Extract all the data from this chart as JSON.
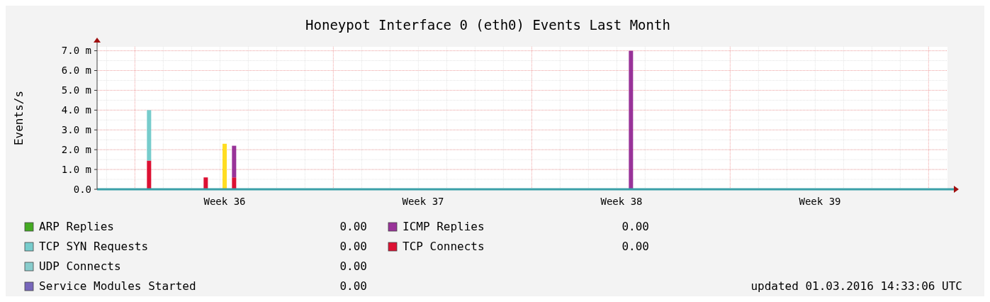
{
  "chart_data": {
    "type": "bar",
    "title": "Honeypot Interface 0 (eth0) Events Last Month",
    "ylabel": "Events/s",
    "stacked": true,
    "categories": [
      null,
      null,
      null,
      null,
      null,
      null,
      null,
      null,
      null,
      null,
      null,
      null,
      null,
      "Week 36",
      null,
      null,
      null,
      null,
      null,
      null,
      null,
      null,
      null,
      null,
      null,
      null,
      null,
      null,
      null,
      null,
      null,
      null,
      null,
      null,
      "Week 37",
      null,
      null,
      null,
      null,
      null,
      null,
      null,
      null,
      null,
      null,
      null,
      null,
      null,
      null,
      null,
      null,
      null,
      null,
      null,
      null,
      "Week 38",
      null,
      null,
      null,
      null,
      null,
      null,
      null,
      null,
      null,
      null,
      null,
      null,
      null,
      null,
      null,
      null,
      null,
      null,
      null,
      null,
      "Week 39",
      null,
      null,
      null,
      null,
      null,
      null,
      null,
      null,
      null,
      null,
      null,
      null,
      null
    ],
    "ylim": [
      0,
      7.2
    ],
    "yticks": [
      {
        "value": 0,
        "label": "0.0"
      },
      {
        "value": 1,
        "label": "1.0 m"
      },
      {
        "value": 2,
        "label": "2.0 m"
      },
      {
        "value": 3,
        "label": "3.0 m"
      },
      {
        "value": 4,
        "label": "4.0 m"
      },
      {
        "value": 5,
        "label": "5.0 m"
      },
      {
        "value": 6,
        "label": "6.0 m"
      },
      {
        "value": 7,
        "label": "7.0 m"
      }
    ],
    "grid": true,
    "legend": "bottom",
    "series": [
      {
        "name": "ARP Replies",
        "color": "#44aa22",
        "values": [
          0,
          0,
          0,
          0,
          0,
          0,
          0,
          0,
          0,
          0,
          0,
          0,
          0,
          0,
          0,
          0,
          0,
          0,
          0,
          0,
          0,
          0,
          0,
          0,
          0,
          0,
          0,
          0,
          0,
          0,
          0,
          0,
          0,
          0,
          0,
          0,
          0,
          0,
          0,
          0,
          0,
          0,
          0,
          0,
          0,
          0,
          0,
          0,
          0,
          0,
          0,
          0,
          0,
          0,
          0,
          0,
          0,
          0,
          0,
          0,
          0,
          0,
          0,
          0,
          0,
          0,
          0,
          0,
          0,
          0,
          0,
          0,
          0,
          0,
          0,
          0,
          0,
          0,
          0,
          0,
          0,
          0,
          0,
          0,
          0,
          0,
          0,
          0,
          0,
          0
        ]
      },
      {
        "name": "TCP Connects",
        "color": "#dd1133",
        "values": [
          null,
          null,
          null,
          null,
          null,
          1.45,
          null,
          null,
          null,
          null,
          null,
          0.6,
          null,
          null,
          0.6,
          null,
          null,
          null,
          null,
          null,
          null,
          null,
          null,
          null,
          null,
          null,
          null,
          null,
          null,
          null,
          null,
          null,
          null,
          null,
          null,
          null,
          null,
          null,
          null,
          null,
          null,
          null,
          null,
          null,
          null,
          null,
          null,
          null,
          null,
          null,
          null,
          null,
          null,
          null,
          null,
          null,
          null,
          null,
          null,
          null,
          null,
          null,
          null,
          null,
          null,
          null,
          null,
          null,
          null,
          null,
          null,
          null,
          null,
          null,
          null,
          null,
          null,
          null,
          null,
          null,
          null,
          null,
          null,
          null,
          null,
          null,
          null,
          null,
          null,
          null
        ]
      },
      {
        "name": "TCP SYN Requests",
        "color": "#77cccc",
        "values": [
          null,
          null,
          null,
          null,
          null,
          2.55,
          null,
          null,
          null,
          null,
          null,
          null,
          null,
          null,
          null,
          null,
          null,
          null,
          null,
          null,
          null,
          null,
          null,
          null,
          null,
          null,
          null,
          null,
          null,
          null,
          null,
          null,
          null,
          null,
          null,
          null,
          null,
          null,
          null,
          null,
          null,
          null,
          null,
          null,
          null,
          null,
          null,
          null,
          null,
          null,
          null,
          null,
          null,
          null,
          null,
          null,
          null,
          null,
          null,
          null,
          null,
          null,
          null,
          null,
          null,
          null,
          null,
          null,
          null,
          null,
          null,
          null,
          null,
          null,
          null,
          null,
          null,
          null,
          null,
          null,
          null,
          null,
          null,
          null,
          null,
          null,
          null,
          null,
          null,
          null
        ]
      },
      {
        "name": "UDP Connects",
        "color": "#88cccc",
        "values": [
          0,
          0,
          0,
          0,
          0,
          0,
          0,
          0,
          0,
          0,
          0,
          0,
          0,
          0,
          0,
          0,
          0,
          0,
          0,
          0,
          0,
          0,
          0,
          0,
          0,
          0,
          0,
          0,
          0,
          0,
          0,
          0,
          0,
          0,
          0,
          0,
          0,
          0,
          0,
          0,
          0,
          0,
          0,
          0,
          0,
          0,
          0,
          0,
          0,
          0,
          0,
          0,
          0,
          0,
          0,
          0,
          0,
          0,
          0,
          0,
          0,
          0,
          0,
          0,
          0,
          0,
          0,
          0,
          0,
          0,
          0,
          0,
          0,
          0,
          0,
          0,
          0,
          0,
          0,
          0,
          0,
          0,
          0,
          0,
          0,
          0,
          0,
          0,
          0,
          0
        ]
      },
      {
        "name": "Service Modules Started",
        "color": "#7766bb",
        "values": [
          0,
          0,
          0,
          0,
          0,
          0,
          0,
          0,
          0,
          0,
          0,
          0,
          0,
          0,
          0,
          0,
          0,
          0,
          0,
          0,
          0,
          0,
          0,
          0,
          0,
          0,
          0,
          0,
          0,
          0,
          0,
          0,
          0,
          0,
          0,
          0,
          0,
          0,
          0,
          0,
          0,
          0,
          0,
          0,
          0,
          0,
          0,
          0,
          0,
          0,
          0,
          0,
          0,
          0,
          0,
          0,
          0,
          0,
          0,
          0,
          0,
          0,
          0,
          0,
          0,
          0,
          0,
          0,
          0,
          0,
          0,
          0,
          0,
          0,
          0,
          0,
          0,
          0,
          0,
          0,
          0,
          0,
          0,
          0,
          0,
          0,
          0,
          0,
          0,
          0
        ]
      },
      {
        "name": "ICMP Replies",
        "color": "#993399",
        "values": [
          null,
          null,
          null,
          null,
          null,
          null,
          null,
          null,
          null,
          null,
          null,
          null,
          null,
          null,
          1.6,
          null,
          null,
          null,
          null,
          null,
          null,
          null,
          null,
          null,
          null,
          null,
          null,
          null,
          null,
          null,
          null,
          null,
          null,
          null,
          null,
          null,
          null,
          null,
          null,
          null,
          null,
          null,
          null,
          null,
          null,
          null,
          null,
          null,
          null,
          null,
          null,
          null,
          null,
          null,
          null,
          null,
          7,
          null,
          null,
          null,
          null,
          null,
          null,
          null,
          null,
          null,
          null,
          null,
          null,
          null,
          null,
          null,
          null,
          null,
          null,
          null,
          null,
          null,
          null,
          null,
          null,
          null,
          null,
          null,
          null,
          null,
          null,
          null,
          null,
          null
        ]
      },
      {
        "color": "#ffdd22",
        "values": [
          null,
          null,
          null,
          null,
          null,
          null,
          null,
          null,
          null,
          null,
          null,
          null,
          null,
          2.3,
          null,
          null,
          null,
          null,
          null,
          null,
          null,
          null,
          null,
          null,
          null,
          null,
          null,
          null,
          null,
          null,
          null,
          null,
          null,
          null,
          null,
          null,
          null,
          null,
          null,
          null,
          null,
          null,
          null,
          null,
          null,
          null,
          null,
          null,
          null,
          null,
          null,
          null,
          null,
          null,
          null,
          null,
          null,
          null,
          null,
          null,
          null,
          null,
          null,
          null,
          null,
          null,
          null,
          null,
          null,
          null,
          null,
          null,
          null,
          null,
          null,
          null,
          null,
          null,
          null,
          null,
          null,
          null,
          null,
          null,
          null,
          null,
          null,
          null,
          null,
          null
        ]
      }
    ],
    "annotations": [
      "0.00",
      "0.00",
      "0.00",
      "0.00",
      "0.00",
      "0.00",
      "updated 01.03.2016 14:33:06 UTC"
    ]
  }
}
